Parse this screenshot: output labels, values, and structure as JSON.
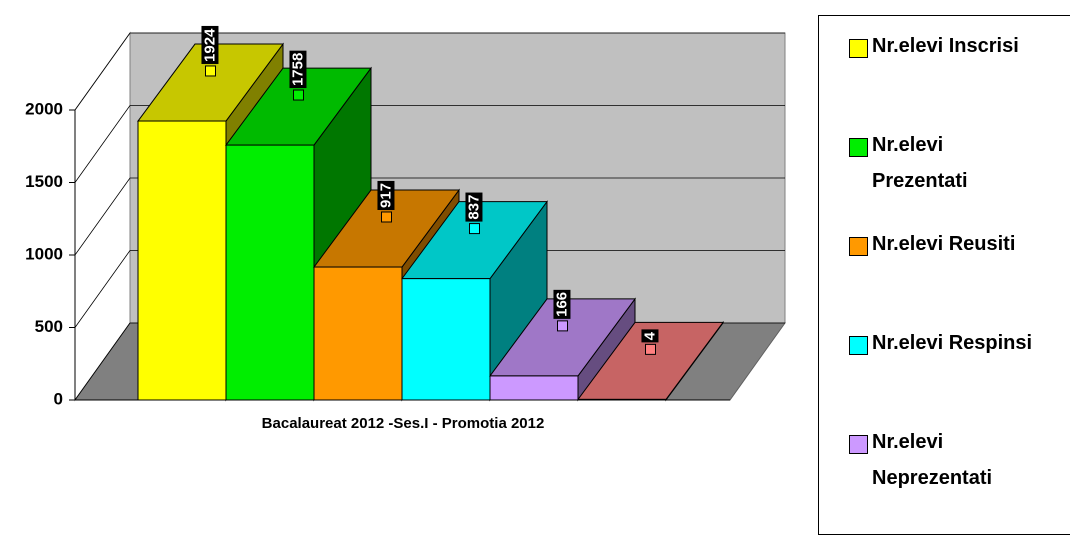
{
  "chart_data": {
    "type": "bar3d",
    "categories": [
      "Bacalaureat 2012 -Ses.I - Promotia 2012"
    ],
    "series": [
      {
        "name": "Nr.elevi Inscrisi",
        "color": "#ffff00",
        "values": [
          1924
        ]
      },
      {
        "name": "Nr.elevi Prezentati",
        "color": "#00ee00",
        "values": [
          1758
        ]
      },
      {
        "name": "Nr.elevi Reusiti",
        "color": "#ff9900",
        "values": [
          917
        ]
      },
      {
        "name": "Nr.elevi Respinsi",
        "color": "#00ffff",
        "values": [
          837
        ]
      },
      {
        "name": "Nr.elevi Neprezentati",
        "color": "#cc99ff",
        "values": [
          166
        ]
      },
      {
        "color": "#ff8080",
        "values": [
          4
        ]
      }
    ],
    "ylim": [
      0,
      2000
    ],
    "yticks": [
      0,
      500,
      1000,
      1500,
      2000
    ],
    "grid": true,
    "legend": "right"
  }
}
